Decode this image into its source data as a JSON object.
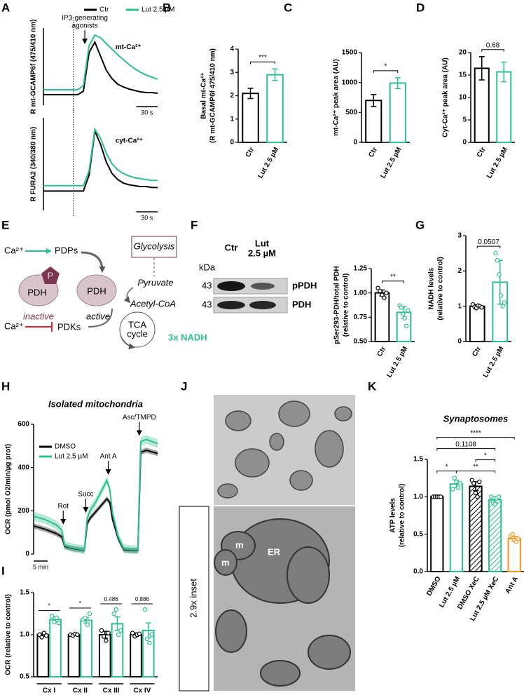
{
  "panels": [
    "A",
    "B",
    "C",
    "D",
    "E",
    "F",
    "G",
    "H",
    "I",
    "J",
    "K"
  ],
  "diagram": {
    "ca_top": "Ca²⁺",
    "pdps": "PDPs",
    "phospho": "P",
    "pdh_inactive": "PDH",
    "pdh_active": "PDH",
    "inactive": "inactive",
    "active": "active",
    "glycolysis": "Glycolysis",
    "pyruvate": "Pyruvate",
    "acetyl_coa": "Acetyl-CoA",
    "tca": [
      "TCA",
      "cycle"
    ],
    "nadh": "3x NADH",
    "ca_bottom": "Ca²⁺",
    "pdks": "PDKs"
  },
  "blot": {
    "kda": "kDa",
    "lanes": [
      "Ctr",
      [
        "Lut",
        "2.5 µM"
      ]
    ],
    "sizes": [
      43,
      43
    ],
    "bands": [
      "pPDH",
      "PDH"
    ]
  },
  "micrograph": {
    "inset_label": "2.9x inset",
    "labels": [
      "m",
      "m",
      "ER"
    ]
  },
  "chart_data": [
    {
      "type": "line",
      "ylabel": [
        "R mt-GCAMP6f (475/410 nm)"
      ],
      "label": "mt-Ca²⁺",
      "x": [
        0,
        8,
        16,
        24,
        32,
        40,
        48,
        56,
        64,
        72,
        80,
        88,
        96,
        104,
        112,
        120,
        128,
        136,
        144,
        152,
        160
      ],
      "xlim": [
        0,
        160
      ],
      "ylim": [
        0,
        11
      ],
      "stimulus_x": 42,
      "annotations": [
        {
          "text": [
            "IP3-generating",
            "agonists"
          ],
          "x": 58
        }
      ],
      "scalebar": {
        "label": "30 s",
        "length": 30
      },
      "legend": "top",
      "series": [
        {
          "name": "Ctr",
          "color": "#000000",
          "values": [
            1.5,
            1.5,
            1.5,
            1.5,
            1.5,
            1.5,
            1.5,
            2,
            7.5,
            9,
            7,
            5,
            3.8,
            3,
            2.6,
            2.3,
            2.1,
            1.9,
            1.8,
            1.8,
            1.7
          ]
        },
        {
          "name": "Lut 2.5 µM",
          "color": "#2ebf8f",
          "values": [
            2.2,
            2.2,
            2.2,
            2.2,
            2.2,
            2.2,
            2.2,
            2.8,
            8.5,
            10,
            9.6,
            8.8,
            8,
            7.2,
            6.5,
            5.8,
            5.2,
            4.7,
            4.3,
            4,
            3.7
          ]
        }
      ]
    },
    {
      "type": "line",
      "ylabel": [
        "R FURA2 (340/380 nm)"
      ],
      "label": "cyt-Ca²⁺",
      "x": [
        0,
        8,
        16,
        24,
        32,
        40,
        48,
        56,
        64,
        72,
        80,
        88,
        96,
        104,
        112,
        120,
        128,
        136,
        144,
        152,
        160
      ],
      "xlim": [
        0,
        160
      ],
      "ylim": [
        0,
        10.5
      ],
      "stimulus_x": 42,
      "scalebar": {
        "label": "30 s",
        "length": 30
      },
      "series": [
        {
          "color": "#000000",
          "values": [
            2.2,
            2.2,
            2.2,
            2.2,
            2.2,
            2.2,
            2.2,
            2.2,
            4,
            9,
            7.5,
            5.5,
            4.2,
            3.5,
            3.1,
            2.9,
            2.8,
            2.7,
            2.7,
            2.6,
            2.6
          ]
        },
        {
          "color": "#2ebf8f",
          "values": [
            2.8,
            2.8,
            2.8,
            2.8,
            2.8,
            2.8,
            2.8,
            2.8,
            4.5,
            9.2,
            8.2,
            6.5,
            5.3,
            4.6,
            4.2,
            3.9,
            3.7,
            3.6,
            3.5,
            3.4,
            3.4
          ]
        }
      ]
    },
    {
      "type": "bar",
      "ylabel": [
        "Basal mt-Ca²⁺",
        "(R mt-GCAMP6f 475/410 nm)"
      ],
      "categories": [
        "Ctr",
        "Lut 2.5 µM"
      ],
      "values": [
        2.1,
        2.9
      ],
      "errors": [
        0.22,
        0.25
      ],
      "colors": [
        "#000000",
        "#2ebf8f"
      ],
      "ylim": [
        0,
        4
      ],
      "yticks": [
        0,
        1,
        2,
        3,
        4
      ],
      "significance": [
        {
          "from": 0,
          "to": 1,
          "label": "***"
        }
      ]
    },
    {
      "type": "bar",
      "ylabel": [
        "mt-Ca²⁺ peak area (AU)"
      ],
      "categories": [
        "Ctr",
        "Lut 2.5 µM"
      ],
      "values": [
        700,
        990
      ],
      "errors": [
        100,
        90
      ],
      "colors": [
        "#000000",
        "#2ebf8f"
      ],
      "ylim": [
        0,
        1500
      ],
      "yticks": [
        0,
        500,
        1000,
        1500
      ],
      "significance": [
        {
          "from": 0,
          "to": 1,
          "label": "*"
        }
      ]
    },
    {
      "type": "bar",
      "ylabel": [
        "Cyt-Ca²⁺ peak area (AU)"
      ],
      "categories": [
        "Ctr",
        "Lut 2.5 µM"
      ],
      "values": [
        16.5,
        15.7
      ],
      "errors": [
        2.6,
        2.2
      ],
      "colors": [
        "#000000",
        "#2ebf8f"
      ],
      "ylim": [
        0,
        20
      ],
      "yticks": [
        0,
        5,
        10,
        15,
        20
      ],
      "significance": [
        {
          "from": 0,
          "to": 1,
          "label": "0.68"
        }
      ]
    },
    {
      "type": "bar",
      "ylabel": [
        "pSer293-PDH/total PDH",
        "(relative to control)"
      ],
      "categories": [
        "Ctr",
        "Lut 2.5 µM"
      ],
      "values": [
        1.0,
        0.8
      ],
      "errors": [
        0.03,
        0.06
      ],
      "colors": [
        "#000000",
        "#2ebf8f"
      ],
      "points": [
        [
          1.05,
          1.02,
          0.98,
          0.95,
          1.0
        ],
        [
          0.87,
          0.85,
          0.78,
          0.74,
          0.66,
          0.82
        ]
      ],
      "ylim": [
        0.5,
        1.25
      ],
      "yticks": [
        {
          "value": 0.5,
          "label": "0.50"
        },
        {
          "value": 0.75,
          "label": "0.75"
        },
        {
          "value": 1,
          "label": "1.00"
        },
        {
          "value": 1.25,
          "label": "1.25"
        }
      ],
      "significance": [
        {
          "from": 0,
          "to": 1,
          "label": "**"
        }
      ]
    },
    {
      "type": "bar",
      "ylabel": [
        "NADH levels",
        "(relative to control)"
      ],
      "categories": [
        "Ctr",
        "Lut 2.5 µM"
      ],
      "values": [
        1.0,
        1.68
      ],
      "errors": [
        0.04,
        0.62
      ],
      "colors": [
        "#000000",
        "#2ebf8f"
      ],
      "points": [
        [
          1.05,
          0.98,
          0.95,
          1.02,
          1.0,
          0.97
        ],
        [
          2.5,
          2.3,
          1.9,
          1.3,
          1.0,
          1.1
        ]
      ],
      "ylim": [
        0,
        3
      ],
      "yticks": [
        0,
        1,
        2,
        3
      ],
      "significance": [
        {
          "from": 0,
          "to": 1,
          "label": "0.0507"
        }
      ]
    },
    {
      "type": "line",
      "title": "Isolated mitochondria",
      "ylabel": [
        "OCR (pmol O2/min/µg prot)"
      ],
      "x": [
        0,
        4,
        8,
        10,
        11,
        14,
        18,
        19,
        20,
        22,
        24,
        26,
        27,
        28,
        30,
        32,
        35,
        37,
        38,
        40,
        44
      ],
      "xlim": [
        0,
        44
      ],
      "ylim": [
        0,
        600
      ],
      "yticks": [
        0,
        200,
        400,
        600
      ],
      "legend": "upper left",
      "annotations": [
        {
          "text": [
            "Rot"
          ],
          "x": 10.5
        },
        {
          "text": [
            "Succ"
          ],
          "x": 18.5
        },
        {
          "text": [
            "Ant A"
          ],
          "x": 26.5
        },
        {
          "text": [
            "Asc/TMPD"
          ],
          "x": 37.5
        }
      ],
      "scalebar": {
        "label": "5 min",
        "length": 5
      },
      "series": [
        {
          "name": "DMSO",
          "color": "#000000",
          "values": [
            130,
            115,
            95,
            80,
            35,
            25,
            18,
            140,
            165,
            195,
            225,
            255,
            240,
            160,
            70,
            20,
            17,
            17,
            470,
            480,
            465
          ],
          "errors": [
            12,
            12,
            12,
            12,
            12,
            12,
            12,
            12,
            12,
            12,
            12,
            12,
            12,
            12,
            12,
            12,
            12,
            12,
            12,
            12,
            12
          ]
        },
        {
          "name": "Lut 2.5 µM",
          "color": "#2ebf8f",
          "values": [
            175,
            160,
            135,
            110,
            40,
            28,
            20,
            165,
            200,
            240,
            290,
            340,
            300,
            190,
            80,
            25,
            20,
            20,
            520,
            530,
            510
          ],
          "errors": [
            20,
            20,
            20,
            20,
            20,
            20,
            20,
            20,
            20,
            20,
            20,
            20,
            20,
            20,
            20,
            20,
            20,
            20,
            20,
            20,
            20
          ]
        }
      ]
    },
    {
      "type": "bar",
      "ylabel": [
        "OCR (relative to control)"
      ],
      "categories": [
        "Cx I",
        "Cx II",
        "Cx III",
        "Cx IV"
      ],
      "ylim": [
        0.5,
        1.5
      ],
      "yticks": [
        0.5,
        {
          "value": 1,
          "label": "1.0"
        },
        1.5
      ],
      "group_labels": [
        "*",
        "*",
        "0.486",
        "0.886"
      ],
      "series": [
        {
          "color": "#000000",
          "values": [
            1.0,
            1.0,
            1.0,
            1.0
          ],
          "errors": [
            0.02,
            0.01,
            0.04,
            0.02
          ],
          "points": [
            [
              1.0,
              0.97,
              1.02,
              0.99
            ],
            [
              1.0,
              0.99,
              1.01,
              1.0
            ],
            [
              1.05,
              0.98,
              0.93,
              1.02
            ],
            [
              1.02,
              0.98,
              1.0,
              1.01
            ]
          ]
        },
        {
          "color": "#2ebf8f",
          "values": [
            1.18,
            1.17,
            1.13,
            1.05
          ],
          "errors": [
            0.03,
            0.03,
            0.08,
            0.09
          ],
          "points": [
            [
              1.22,
              1.15,
              1.2,
              1.14
            ],
            [
              1.18,
              1.2,
              1.12,
              1.25
            ],
            [
              1.25,
              1.3,
              1.0,
              1.05
            ],
            [
              1.3,
              0.95,
              0.9,
              1.0
            ]
          ]
        }
      ]
    },
    {
      "type": "bar",
      "title": "Synaptosomes",
      "ylabel": [
        "ATP levels",
        "(relative to control)"
      ],
      "categories": [
        "DMSO",
        "Lut 2.5 µM",
        "DMSO XeC",
        "Lut 2.5 µM XeC",
        "Ant A"
      ],
      "values": [
        1.0,
        1.17,
        1.14,
        0.96,
        0.44
      ],
      "errors": [
        0.01,
        0.05,
        0.06,
        0.04,
        0.03
      ],
      "colors": [
        "#000000",
        "#2ebf8f",
        "#000000",
        "#2ebf8f",
        "#f7941d"
      ],
      "hatched": [
        false,
        false,
        true,
        true,
        false
      ],
      "points": [
        [
          1.0,
          1.0,
          1.0,
          1.0,
          1.0
        ],
        [
          1.1,
          1.25,
          1.2,
          1.12,
          1.18
        ],
        [
          1.22,
          1.18,
          1.05,
          1.0,
          1.2
        ],
        [
          1.0,
          0.92,
          0.9,
          0.98,
          1.0
        ],
        [
          0.48,
          0.5,
          0.42,
          0.4,
          0.44
        ]
      ],
      "ylim": [
        0,
        1.5
      ],
      "yticks": [
        {
          "value": 0,
          "label": "0.0"
        },
        0.5,
        {
          "value": 1,
          "label": "1.0"
        },
        1.5
      ],
      "significance": [
        {
          "from": 0,
          "to": 1,
          "label": "*"
        },
        {
          "from": 1,
          "to": 3,
          "label": "**"
        },
        {
          "from": 2,
          "to": 3,
          "label": "*"
        },
        {
          "from": 0,
          "to": 3,
          "label": "0.1108"
        },
        {
          "from": 0,
          "to": 4,
          "label": "****"
        }
      ]
    }
  ]
}
